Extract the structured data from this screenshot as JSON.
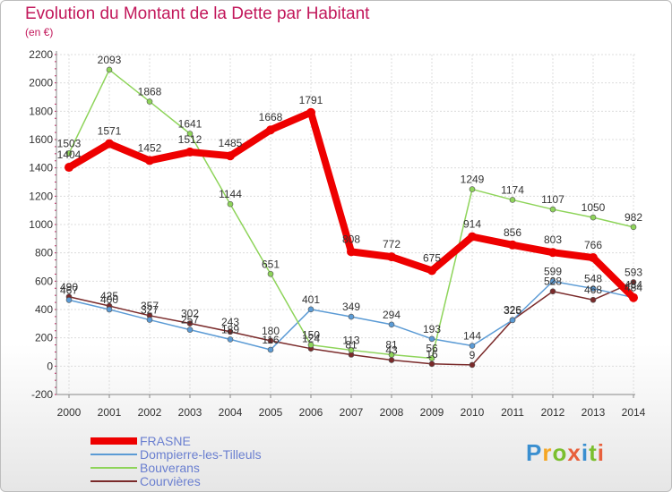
{
  "chart_data": {
    "type": "line",
    "title": "Evolution du Montant de la Dette par Habitant",
    "subtitle": "(en €)",
    "x": [
      "2000",
      "2001",
      "2002",
      "2003",
      "2004",
      "2005",
      "2006",
      "2007",
      "2008",
      "2009",
      "2010",
      "2011",
      "2012",
      "2013",
      "2014"
    ],
    "ylim": [
      -200,
      2200
    ],
    "yticks": [
      -200,
      0,
      200,
      400,
      600,
      800,
      1000,
      1200,
      1400,
      1600,
      1800,
      2000,
      2200
    ],
    "grid": true,
    "legend_position": "bottom-left",
    "series": [
      {
        "name": "FRASNE",
        "color": "#ee0000",
        "values": [
          1404,
          1571,
          1452,
          1512,
          1485,
          1668,
          1791,
          808,
          772,
          675,
          914,
          856,
          803,
          766,
          484
        ]
      },
      {
        "name": "Dompierre-les-Tilleuls",
        "color": "#5b9bd5",
        "values": [
          467,
          400,
          327,
          257,
          189,
          116,
          401,
          349,
          294,
          193,
          144,
          325,
          599,
          548,
          484
        ]
      },
      {
        "name": "Bouverans",
        "color": "#8ed45a",
        "values": [
          1503,
          2093,
          1868,
          1641,
          1144,
          651,
          150,
          113,
          81,
          56,
          1249,
          1174,
          1107,
          1050,
          982
        ]
      },
      {
        "name": "Courvières",
        "color": "#7a2a2a",
        "values": [
          490,
          425,
          357,
          302,
          243,
          180,
          124,
          81,
          43,
          16,
          9,
          326,
          528,
          468,
          593
        ]
      }
    ]
  },
  "logo_text": "Proxiti",
  "logo_letters": [
    "P",
    "r",
    "o",
    "x",
    "i",
    "t",
    "i"
  ]
}
